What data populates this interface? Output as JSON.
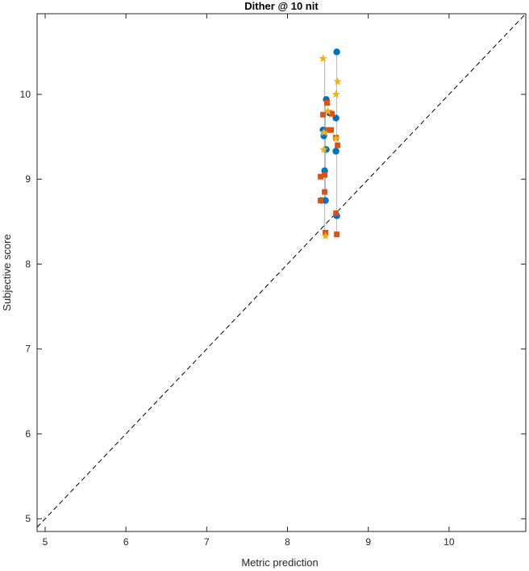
{
  "chart_data": {
    "type": "scatter",
    "title": "Dither @ 10 nit",
    "xlabel": "Metric prediction",
    "ylabel": "Subjective score",
    "xlim": [
      4.9,
      10.95
    ],
    "ylim": [
      4.85,
      10.95
    ],
    "xticks": [
      "5",
      "6",
      "7",
      "8",
      "9",
      "10"
    ],
    "yticks": [
      "5",
      "6",
      "7",
      "8",
      "9",
      "10"
    ],
    "grid": false,
    "reference_line": {
      "style": "dashed",
      "color": "#000000",
      "from": [
        4.9,
        4.9
      ],
      "to": [
        10.95,
        10.95
      ]
    },
    "series": [
      {
        "marker": "circle",
        "color": "#0072BD",
        "points": [
          [
            8.61,
            10.5
          ],
          [
            8.48,
            9.94
          ],
          [
            8.6,
            9.72
          ],
          [
            8.52,
            9.78
          ],
          [
            8.44,
            9.58
          ],
          [
            8.45,
            9.51
          ],
          [
            8.48,
            9.35
          ],
          [
            8.6,
            9.33
          ],
          [
            8.46,
            9.1
          ],
          [
            8.47,
            8.75
          ],
          [
            8.42,
            8.75
          ],
          [
            8.61,
            8.57
          ]
        ]
      },
      {
        "marker": "square",
        "color": "#D95319",
        "points": [
          [
            8.49,
            9.9
          ],
          [
            8.55,
            9.77
          ],
          [
            8.44,
            9.76
          ],
          [
            8.5,
            9.58
          ],
          [
            8.54,
            9.58
          ],
          [
            8.6,
            9.49
          ],
          [
            8.62,
            9.4
          ],
          [
            8.41,
            9.03
          ],
          [
            8.46,
            9.05
          ],
          [
            8.46,
            8.85
          ],
          [
            8.41,
            8.75
          ],
          [
            8.6,
            8.6
          ],
          [
            8.47,
            8.37
          ],
          [
            8.61,
            8.35
          ]
        ]
      },
      {
        "marker": "star",
        "color": "#EDB120",
        "points": [
          [
            8.44,
            10.42
          ],
          [
            8.62,
            10.15
          ],
          [
            8.6,
            10.0
          ],
          [
            8.5,
            9.8
          ],
          [
            8.45,
            9.55
          ],
          [
            8.6,
            9.48
          ],
          [
            8.45,
            9.35
          ],
          [
            8.47,
            8.33
          ]
        ]
      }
    ],
    "connectors": [
      {
        "x": 8.61,
        "y": [
          8.35,
          10.5
        ]
      },
      {
        "x": 8.46,
        "y": [
          8.33,
          10.42
        ]
      },
      {
        "x": 8.47,
        "y": [
          8.75,
          9.94
        ]
      }
    ]
  }
}
